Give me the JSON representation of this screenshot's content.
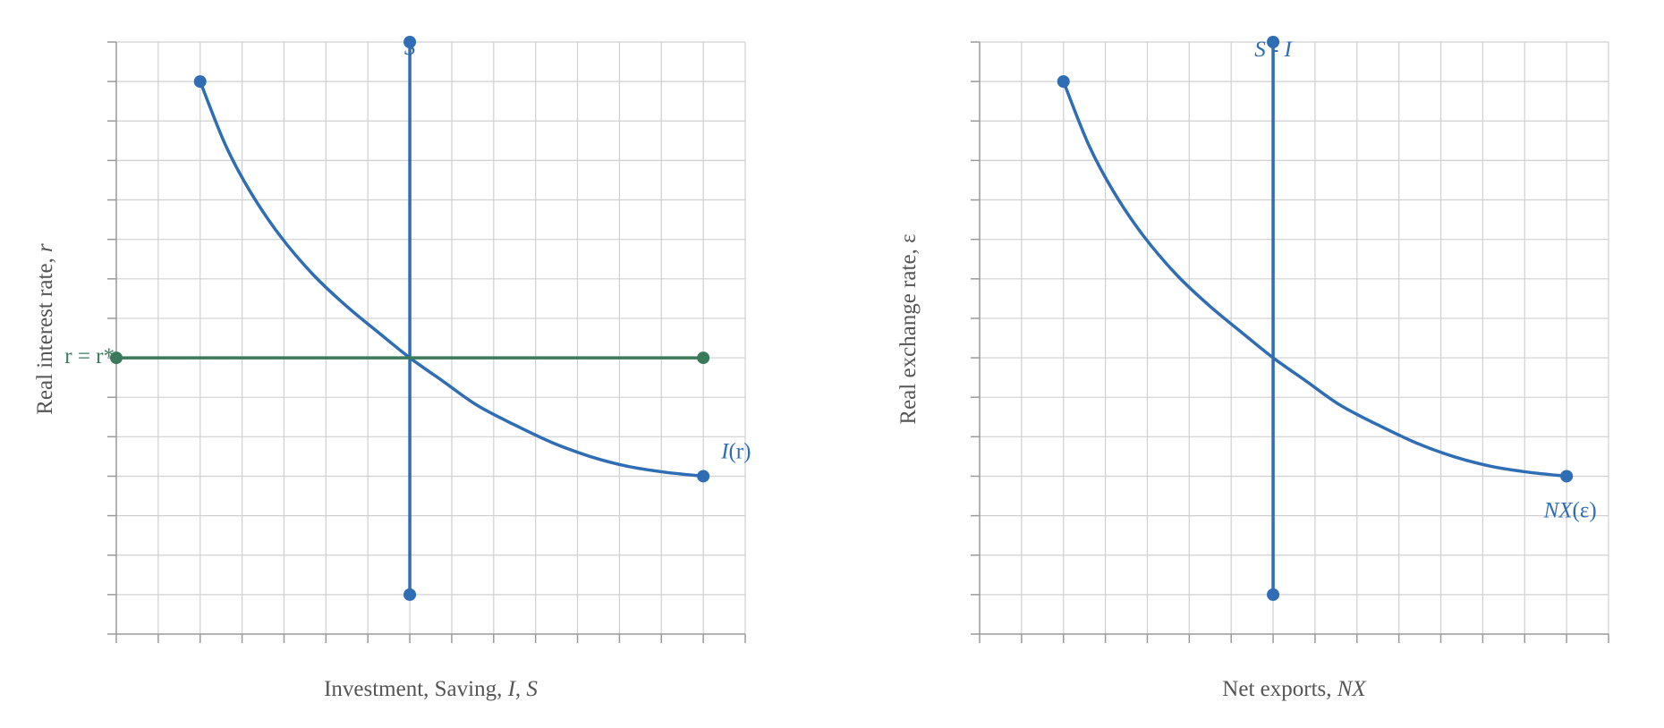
{
  "colors": {
    "curve": "#2f6db5",
    "world_rate": "#3a7a5a",
    "grid": "#d0d0d0",
    "axis": "#9a9a9a",
    "label": "#555555"
  },
  "chart_data": [
    {
      "type": "line",
      "xlabel_plain": "Investment, Saving, ",
      "xlabel_italic_1": "I",
      "xlabel_sep": ", ",
      "xlabel_italic_2": "S",
      "ylabel_plain": "Real interest rate, ",
      "ylabel_italic": "r",
      "grid": true,
      "xlim": [
        0,
        15
      ],
      "ylim": [
        0,
        15
      ],
      "series": [
        {
          "name": "S",
          "x": [
            7,
            7
          ],
          "y": [
            1,
            15
          ]
        },
        {
          "name": "I(r)",
          "x": [
            2,
            2.6,
            3.2,
            3.9,
            4.7,
            5.5,
            6.3,
            7,
            7.8,
            8.6,
            9.5,
            10.4,
            11.3,
            12.2,
            13.1,
            14
          ],
          "y": [
            14,
            12.4,
            11.2,
            10.1,
            9.1,
            8.3,
            7.6,
            7,
            6.4,
            5.8,
            5.3,
            4.85,
            4.5,
            4.25,
            4.1,
            4
          ]
        },
        {
          "name": "r = r*",
          "x": [
            0,
            14
          ],
          "y": [
            7,
            7
          ]
        }
      ],
      "labels": {
        "S": "S",
        "I": "I",
        "I_arg": "(r)",
        "world_rate": "r = r*"
      }
    },
    {
      "type": "line",
      "xlabel_plain": "Net exports, ",
      "xlabel_italic": "NX",
      "ylabel": "Real exchange rate, ε",
      "grid": true,
      "xlim": [
        0,
        15
      ],
      "ylim": [
        0,
        15
      ],
      "series": [
        {
          "name": "S - I",
          "x": [
            7,
            7
          ],
          "y": [
            1,
            15
          ]
        },
        {
          "name": "NX(ε)",
          "x": [
            2,
            2.6,
            3.2,
            3.9,
            4.7,
            5.5,
            6.3,
            7,
            7.8,
            8.6,
            9.5,
            10.4,
            11.3,
            12.2,
            13.1,
            14
          ],
          "y": [
            14,
            12.4,
            11.2,
            10.1,
            9.1,
            8.3,
            7.6,
            7,
            6.4,
            5.8,
            5.3,
            4.85,
            4.5,
            4.25,
            4.1,
            4
          ]
        }
      ],
      "labels": {
        "S_minus_I": "S - I",
        "NX": "NX",
        "NX_arg": "(ε)"
      }
    }
  ]
}
